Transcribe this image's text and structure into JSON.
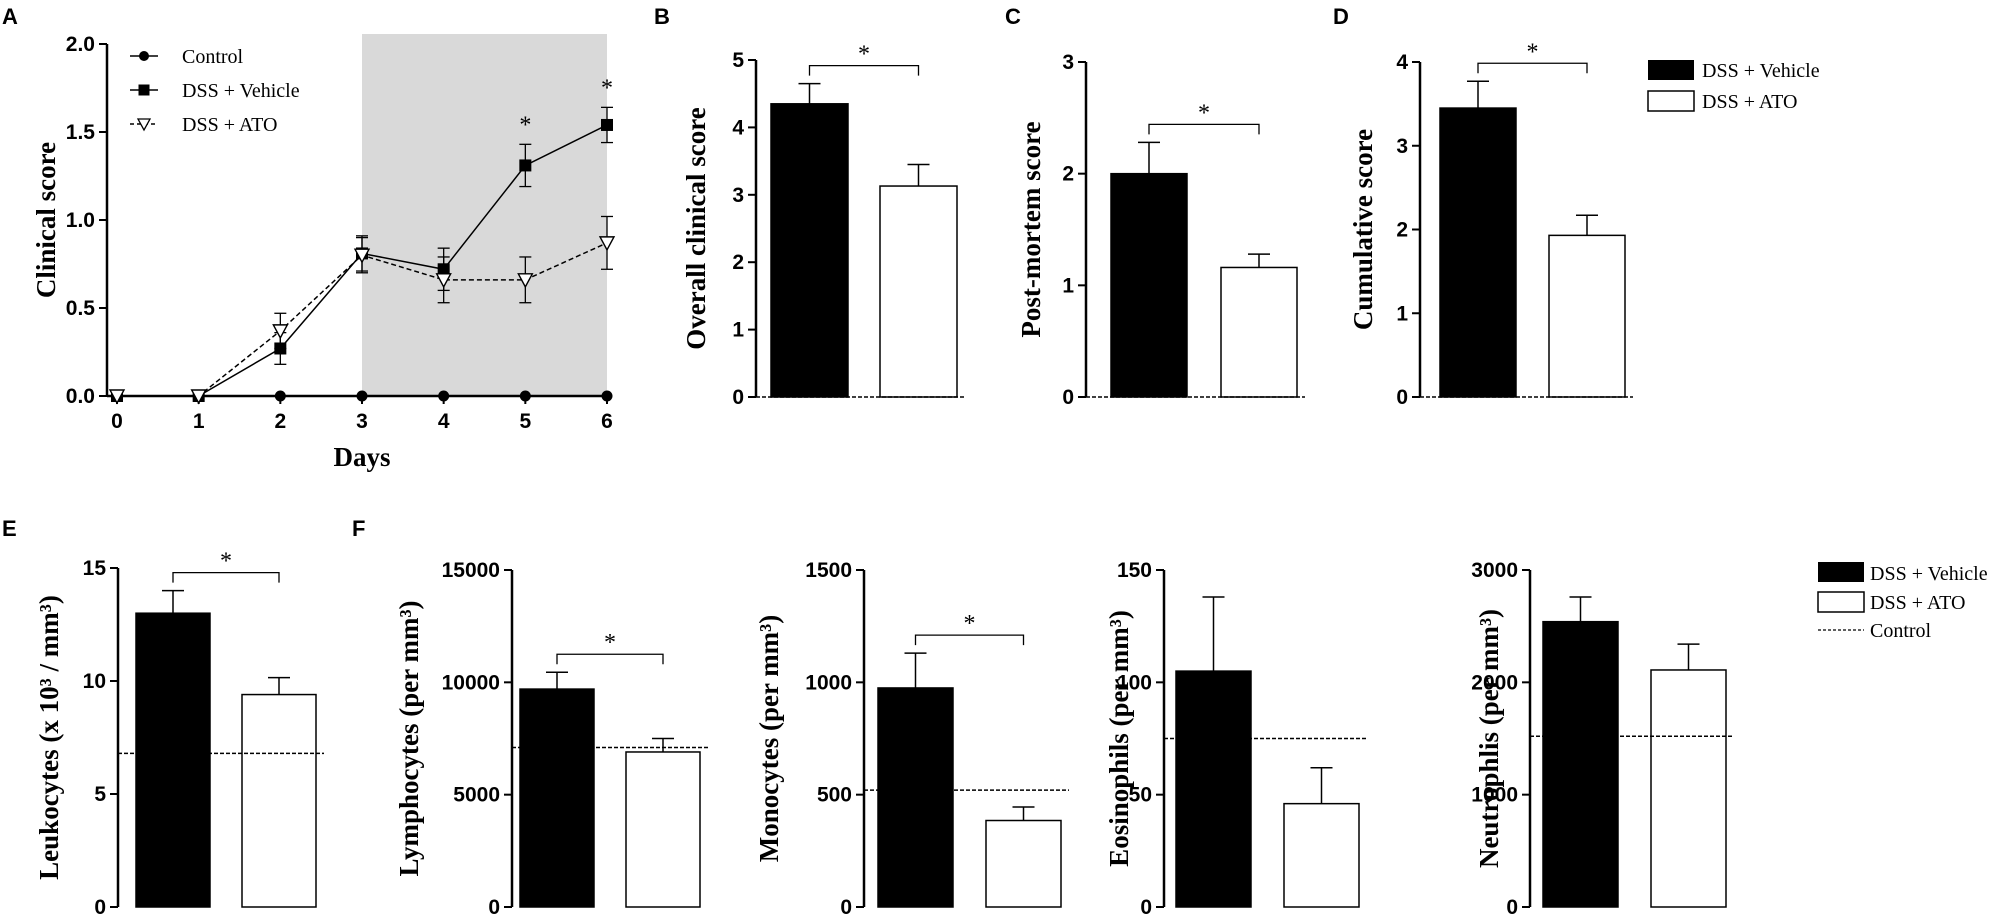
{
  "panel_letters": {
    "A": "A",
    "B": "B",
    "C": "C",
    "D": "D",
    "E": "E",
    "F": "F"
  },
  "colors": {
    "shade": "#d9d9d9",
    "ink": "#000000",
    "open": "#ffffff"
  },
  "legend_top": {
    "vehicle": "DSS + Vehicle",
    "ato": "DSS + ATO"
  },
  "legend_bottom": {
    "vehicle": "DSS + Vehicle",
    "ato": "DSS + ATO",
    "control": "Control"
  },
  "chart_data": [
    {
      "id": "A",
      "type": "line",
      "xlabel": "Days",
      "ylabel": "Clinical score",
      "x": [
        0,
        1,
        2,
        3,
        4,
        5,
        6
      ],
      "x_ticks": [
        "0",
        "1",
        "2",
        "3",
        "4",
        "5",
        "6"
      ],
      "y_ticks": [
        "0.0",
        "0.5",
        "1.0",
        "1.5",
        "2.0"
      ],
      "xlim": [
        0,
        6
      ],
      "ylim": [
        0,
        2.0
      ],
      "shaded_range": [
        3,
        6
      ],
      "series": [
        {
          "name": "Control",
          "marker": "circle",
          "dashed": false,
          "values": [
            0,
            0,
            0,
            0,
            0,
            0,
            0
          ],
          "errors": [
            0,
            0,
            0,
            0,
            0,
            0,
            0
          ]
        },
        {
          "name": "DSS + Vehicle",
          "marker": "square",
          "dashed": false,
          "values": [
            0,
            0,
            0.27,
            0.81,
            0.72,
            1.31,
            1.54
          ],
          "errors": [
            0,
            0,
            0.09,
            0.1,
            0.12,
            0.12,
            0.1
          ]
        },
        {
          "name": "DSS + ATO",
          "marker": "triangle-open",
          "dashed": true,
          "values": [
            0,
            0,
            0.37,
            0.8,
            0.66,
            0.66,
            0.87
          ],
          "errors": [
            0,
            0,
            0.1,
            0.1,
            0.13,
            0.13,
            0.15
          ]
        }
      ],
      "significance": [
        {
          "x": 5,
          "label": "*"
        },
        {
          "x": 6,
          "label": "*"
        }
      ]
    },
    {
      "id": "B",
      "type": "bar",
      "ylabel": "Overall clinical score",
      "categories": [
        "DSS + Vehicle",
        "DSS + ATO"
      ],
      "values": [
        4.35,
        3.13
      ],
      "errors": [
        0.3,
        0.32
      ],
      "ylim": [
        0,
        5
      ],
      "y_ticks": [
        "0",
        "1",
        "2",
        "3",
        "4",
        "5"
      ],
      "control": 0,
      "significance": "*"
    },
    {
      "id": "C",
      "type": "bar",
      "ylabel": "Post-mortem score",
      "categories": [
        "DSS + Vehicle",
        "DSS + ATO"
      ],
      "values": [
        2.0,
        1.16
      ],
      "errors": [
        0.28,
        0.12
      ],
      "ylim": [
        0,
        3
      ],
      "y_ticks": [
        "0",
        "1",
        "2",
        "3"
      ],
      "control": 0,
      "significance": "*"
    },
    {
      "id": "D",
      "type": "bar",
      "ylabel": "Cumulative score",
      "categories": [
        "DSS + Vehicle",
        "DSS + ATO"
      ],
      "values": [
        3.45,
        1.93
      ],
      "errors": [
        0.32,
        0.24
      ],
      "ylim": [
        0,
        4
      ],
      "y_ticks": [
        "0",
        "1",
        "2",
        "3",
        "4"
      ],
      "control": 0,
      "significance": "*"
    },
    {
      "id": "E",
      "type": "bar",
      "ylabel": "Leukocytes (x 10³ / mm³)",
      "categories": [
        "DSS + Vehicle",
        "DSS + ATO"
      ],
      "values": [
        13.0,
        9.4
      ],
      "errors": [
        1.0,
        0.75
      ],
      "ylim": [
        0,
        15
      ],
      "y_ticks": [
        "0",
        "5",
        "10",
        "15"
      ],
      "control": 6.8,
      "significance": "*"
    },
    {
      "id": "F1",
      "type": "bar",
      "ylabel": "Lymphocytes (per mm³)",
      "categories": [
        "DSS + Vehicle",
        "DSS + ATO"
      ],
      "values": [
        9700,
        6900
      ],
      "errors": [
        750,
        600
      ],
      "ylim": [
        0,
        15000
      ],
      "y_ticks": [
        "0",
        "5000",
        "10000",
        "15000"
      ],
      "control": 7100,
      "significance": "*"
    },
    {
      "id": "F2",
      "type": "bar",
      "ylabel": "Monocytes (per mm³)",
      "categories": [
        "DSS + Vehicle",
        "DSS + ATO"
      ],
      "values": [
        975,
        385
      ],
      "errors": [
        155,
        60
      ],
      "ylim": [
        0,
        1500
      ],
      "y_ticks": [
        "0",
        "500",
        "1000",
        "1500"
      ],
      "control": 520,
      "significance": "*"
    },
    {
      "id": "F3",
      "type": "bar",
      "ylabel": "Eosinophils (per mm³)",
      "categories": [
        "DSS + Vehicle",
        "DSS + ATO"
      ],
      "values": [
        105,
        46
      ],
      "errors": [
        33,
        16
      ],
      "ylim": [
        0,
        150
      ],
      "y_ticks": [
        "0",
        "50",
        "100",
        "150"
      ],
      "control": 75,
      "significance": ""
    },
    {
      "id": "F4",
      "type": "bar",
      "ylabel": "Neutrophlis (per mm³)",
      "categories": [
        "DSS + Vehicle",
        "DSS + ATO"
      ],
      "values": [
        2540,
        2110
      ],
      "errors": [
        220,
        230
      ],
      "ylim": [
        0,
        3000
      ],
      "y_ticks": [
        "0",
        "1000",
        "2000",
        "3000"
      ],
      "control": 1520,
      "significance": ""
    }
  ]
}
